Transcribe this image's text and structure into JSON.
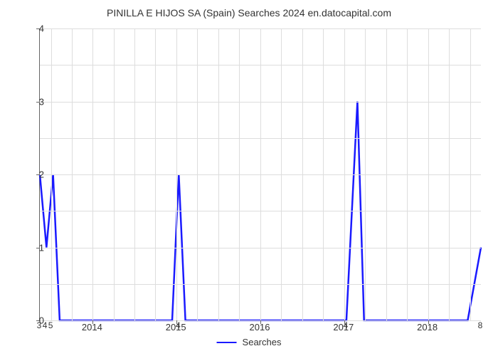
{
  "chart": {
    "type": "line",
    "title": "PINILLA E HIJOS SA (Spain) Searches 2024 en.datocapital.com",
    "title_fontsize": 14,
    "title_color": "#333333",
    "background_color": "#ffffff",
    "grid_color": "#dddddd",
    "axis_color": "#666666",
    "line_color": "#1a1aff",
    "line_width": 2.5,
    "x_axis": {
      "ticks": [
        {
          "pos": 0.12,
          "label": "2014"
        },
        {
          "pos": 0.31,
          "label": "2015"
        },
        {
          "pos": 0.5,
          "label": "2016"
        },
        {
          "pos": 0.69,
          "label": "2017"
        },
        {
          "pos": 0.88,
          "label": "2018"
        }
      ],
      "grid_positions": [
        0.025,
        0.072,
        0.12,
        0.167,
        0.215,
        0.262,
        0.31,
        0.357,
        0.405,
        0.452,
        0.5,
        0.547,
        0.595,
        0.642,
        0.69,
        0.737,
        0.785,
        0.832,
        0.88,
        0.927,
        0.975
      ]
    },
    "y_axis": {
      "min": 0,
      "max": 4,
      "ticks": [
        0,
        1,
        2,
        3,
        4
      ],
      "grid_positions": [
        0,
        0.125,
        0.25,
        0.375,
        0.5,
        0.625,
        0.75,
        0.875,
        1.0
      ]
    },
    "series": {
      "name": "Searches",
      "points": [
        {
          "x": 0.0,
          "y": 2.0
        },
        {
          "x": 0.015,
          "y": 1.0
        },
        {
          "x": 0.03,
          "y": 2.0
        },
        {
          "x": 0.045,
          "y": 0.0
        },
        {
          "x": 0.3,
          "y": 0.0
        },
        {
          "x": 0.315,
          "y": 2.0
        },
        {
          "x": 0.33,
          "y": 0.0
        },
        {
          "x": 0.68,
          "y": 0.0
        },
        {
          "x": 0.695,
          "y": 0.0
        },
        {
          "x": 0.72,
          "y": 3.0
        },
        {
          "x": 0.735,
          "y": 0.0
        },
        {
          "x": 0.97,
          "y": 0.0
        },
        {
          "x": 1.0,
          "y": 1.0
        }
      ]
    },
    "data_labels": [
      {
        "x": 0.0,
        "y": 0.0,
        "text": "3"
      },
      {
        "x": 0.013,
        "y": 0.0,
        "text": "4"
      },
      {
        "x": 0.026,
        "y": 0.0,
        "text": "5"
      },
      {
        "x": 0.315,
        "y": 0.0,
        "text": "4"
      },
      {
        "x": 0.695,
        "y": 0.0,
        "text": "4"
      },
      {
        "x": 1.0,
        "y": 0.0,
        "text": "8"
      }
    ],
    "legend": {
      "label": "Searches"
    }
  }
}
